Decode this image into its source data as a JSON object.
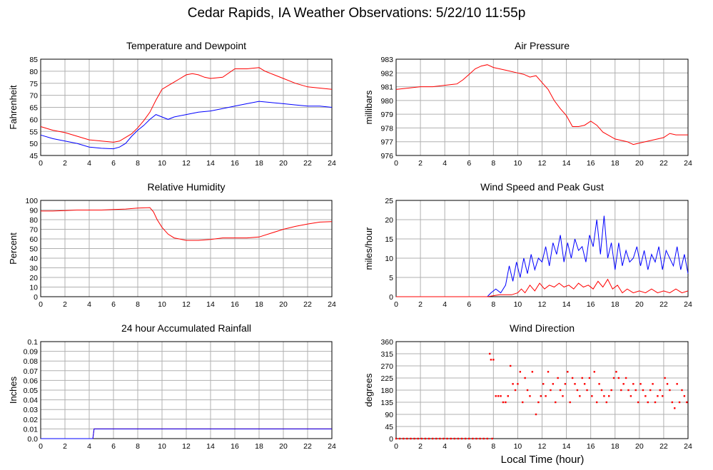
{
  "page": {
    "title": "Cedar Rapids, IA Weather Observations: 5/22/10 11:55p",
    "xlabel_bottom": "Local Time (hour)"
  },
  "chart_data": [
    {
      "type": "line",
      "title": "Temperature and Dewpoint",
      "ylabel": "Fahrenheit",
      "xlim": [
        0,
        24
      ],
      "ylim": [
        45,
        85
      ],
      "xticks": [
        0,
        2,
        4,
        6,
        8,
        10,
        12,
        14,
        16,
        18,
        20,
        22,
        24
      ],
      "yticks": [
        45,
        50,
        55,
        60,
        65,
        70,
        75,
        80,
        85
      ],
      "grid": true,
      "series": [
        {
          "color": "#ff0000",
          "x": [
            0,
            1,
            2,
            3,
            4,
            5,
            6,
            6.5,
            7,
            7.5,
            8,
            8.5,
            9,
            9.5,
            10,
            10.5,
            11,
            11.5,
            12,
            12.5,
            13,
            13.5,
            14,
            15,
            16,
            17,
            18,
            18.5,
            19,
            20,
            21,
            22,
            23,
            24
          ],
          "y": [
            57,
            55.5,
            54.5,
            53,
            51.5,
            51,
            50.5,
            51,
            52.5,
            54,
            56.5,
            59.5,
            63,
            68,
            72.5,
            74,
            75.5,
            77,
            78.5,
            79,
            78.5,
            77.5,
            77,
            77.5,
            81,
            81,
            81.5,
            80,
            79,
            77,
            75,
            73.5,
            73,
            72.5
          ]
        },
        {
          "color": "#0000ff",
          "x": [
            0,
            1,
            2,
            3,
            4,
            5,
            6,
            6.5,
            7,
            7.5,
            8,
            8.5,
            9,
            9.5,
            10,
            10.5,
            11,
            12,
            13,
            14,
            15,
            16,
            17,
            18,
            19,
            20,
            21,
            22,
            23,
            24
          ],
          "y": [
            53.5,
            52,
            51,
            50,
            48.5,
            48,
            47.8,
            48.5,
            50,
            53,
            55.5,
            57.5,
            60,
            62,
            61,
            60,
            61,
            62,
            63,
            63.5,
            64.5,
            65.5,
            66.5,
            67.5,
            67,
            66.5,
            66,
            65.5,
            65.5,
            65
          ]
        }
      ]
    },
    {
      "type": "line",
      "title": "Air Pressure",
      "ylabel": "millibars",
      "xlim": [
        0,
        24
      ],
      "ylim": [
        976,
        983
      ],
      "xticks": [
        0,
        2,
        4,
        6,
        8,
        10,
        12,
        14,
        16,
        18,
        20,
        22,
        24
      ],
      "yticks": [
        976,
        977,
        978,
        979,
        980,
        981,
        982,
        983
      ],
      "grid": true,
      "series": [
        {
          "color": "#ff0000",
          "x": [
            0,
            1,
            2,
            3,
            4,
            5,
            5.5,
            6,
            6.5,
            7,
            7.5,
            8,
            8.5,
            9,
            10,
            10.5,
            11,
            11.5,
            12,
            12.5,
            13,
            13.5,
            14,
            14.5,
            15,
            15.5,
            16,
            16.5,
            17,
            18,
            19,
            19.5,
            20,
            21,
            22,
            22.5,
            23,
            24
          ],
          "y": [
            980.8,
            980.9,
            981.0,
            981.0,
            981.1,
            981.2,
            981.5,
            981.9,
            982.3,
            982.5,
            982.6,
            982.4,
            982.3,
            982.2,
            982.0,
            981.9,
            981.7,
            981.8,
            981.3,
            980.8,
            980.0,
            979.4,
            978.9,
            978.1,
            978.1,
            978.2,
            978.5,
            978.2,
            977.7,
            977.2,
            977.0,
            976.8,
            976.9,
            977.1,
            977.3,
            977.6,
            977.5,
            977.5
          ]
        }
      ]
    },
    {
      "type": "line",
      "title": "Relative Humidity",
      "ylabel": "Percent",
      "xlim": [
        0,
        24
      ],
      "ylim": [
        0,
        100
      ],
      "xticks": [
        0,
        2,
        4,
        6,
        8,
        10,
        12,
        14,
        16,
        18,
        20,
        22,
        24
      ],
      "yticks": [
        0,
        10,
        20,
        30,
        40,
        50,
        60,
        70,
        80,
        90,
        100
      ],
      "grid": true,
      "series": [
        {
          "color": "#ff0000",
          "x": [
            0,
            1,
            2,
            3,
            4,
            5,
            6,
            7,
            8,
            9,
            9.3,
            9.6,
            10,
            10.5,
            11,
            12,
            13,
            14,
            15,
            16,
            17,
            18,
            19,
            20,
            21,
            22,
            23,
            24
          ],
          "y": [
            89,
            89,
            89.5,
            90,
            90,
            90,
            90.5,
            91,
            92,
            92.5,
            88,
            80,
            72,
            65,
            61,
            58.5,
            58.5,
            59.5,
            61,
            61,
            61,
            62,
            66,
            70,
            73,
            75.5,
            77.5,
            78
          ]
        }
      ]
    },
    {
      "type": "line",
      "title": "Wind Speed and Peak Gust",
      "ylabel": "miles/hour",
      "xlim": [
        0,
        24
      ],
      "ylim": [
        0,
        25
      ],
      "xticks": [
        0,
        2,
        4,
        6,
        8,
        10,
        12,
        14,
        16,
        18,
        20,
        22,
        24
      ],
      "yticks": [
        0,
        5,
        10,
        15,
        20,
        25
      ],
      "grid": true,
      "series": [
        {
          "color": "#0000ff",
          "x": [
            0,
            7.5,
            7.8,
            8.2,
            8.6,
            9,
            9.3,
            9.6,
            9.9,
            10.2,
            10.5,
            10.8,
            11.1,
            11.4,
            11.7,
            12,
            12.3,
            12.6,
            12.9,
            13.2,
            13.5,
            13.8,
            14.1,
            14.4,
            14.7,
            15,
            15.3,
            15.6,
            15.9,
            16.2,
            16.5,
            16.8,
            17.1,
            17.4,
            17.7,
            18,
            18.3,
            18.6,
            18.9,
            19.2,
            19.5,
            19.8,
            20.1,
            20.4,
            20.7,
            21,
            21.3,
            21.6,
            21.9,
            22.2,
            22.5,
            22.8,
            23.1,
            23.4,
            23.7,
            24
          ],
          "y": [
            0,
            0,
            1,
            2,
            1,
            3,
            8,
            4,
            9,
            5,
            10,
            6,
            11,
            7,
            10,
            9,
            13,
            8,
            14,
            11,
            16,
            9,
            14,
            10,
            15,
            12,
            13,
            9,
            16,
            13,
            20,
            11,
            21,
            10,
            14,
            7,
            14,
            8,
            12,
            9,
            10,
            13,
            8,
            12,
            7,
            11,
            9,
            13,
            7,
            12,
            10,
            8,
            13,
            7,
            11,
            6
          ]
        },
        {
          "color": "#ff0000",
          "x": [
            0,
            7.5,
            8.5,
            9,
            9.5,
            10,
            10.3,
            10.6,
            11,
            11.4,
            11.8,
            12.2,
            12.6,
            13,
            13.4,
            13.8,
            14.2,
            14.6,
            15,
            15.4,
            15.8,
            16.2,
            16.6,
            17,
            17.4,
            17.8,
            18.2,
            18.6,
            19,
            19.5,
            20,
            20.5,
            21,
            21.5,
            22,
            22.5,
            23,
            23.5,
            24
          ],
          "y": [
            0,
            0,
            0.5,
            0.5,
            0.5,
            1,
            2,
            1,
            3,
            1.5,
            3.5,
            2,
            3,
            2.5,
            3.5,
            2.5,
            3,
            2,
            3.5,
            2.5,
            3,
            2,
            4,
            2.5,
            4.5,
            2,
            3,
            1,
            2,
            1,
            1.5,
            1,
            2,
            1,
            1.5,
            1,
            2,
            1,
            1.5
          ]
        }
      ]
    },
    {
      "type": "line",
      "title": "24 hour Accumulated Rainfall",
      "ylabel": "Inches",
      "xlim": [
        0,
        24
      ],
      "ylim": [
        0,
        0.1
      ],
      "xticks": [
        0,
        2,
        4,
        6,
        8,
        10,
        12,
        14,
        16,
        18,
        20,
        22,
        24
      ],
      "yticks": [
        "0.0",
        "0.01",
        "0.02",
        "0.03",
        "0.04",
        "0.05",
        "0.06",
        "0.07",
        "0.08",
        "0.09",
        "0.1"
      ],
      "grid": true,
      "series": [
        {
          "color": "#ff0000",
          "x": [
            0,
            4.3,
            4.4,
            24
          ],
          "y": [
            0,
            0,
            0.01,
            0.01
          ]
        },
        {
          "color": "#0000ff",
          "x": [
            0,
            4.3,
            4.4,
            24
          ],
          "y": [
            0,
            0,
            0.01,
            0.01
          ]
        }
      ]
    },
    {
      "type": "scatter",
      "title": "Wind Direction",
      "ylabel": "degrees",
      "xlabel": "Local Time (hour)",
      "xlim": [
        0,
        24
      ],
      "ylim": [
        0,
        360
      ],
      "xticks": [
        0,
        2,
        4,
        6,
        8,
        10,
        12,
        14,
        16,
        18,
        20,
        22,
        24
      ],
      "yticks": [
        0,
        45,
        90,
        135,
        180,
        225,
        270,
        315,
        360
      ],
      "grid": true,
      "series": [
        {
          "color": "#ff0000",
          "x": [
            0,
            0.3,
            0.6,
            0.9,
            1.2,
            1.5,
            1.8,
            2.1,
            2.4,
            2.7,
            3,
            3.3,
            3.6,
            3.9,
            4.2,
            4.5,
            4.8,
            5.1,
            5.4,
            5.7,
            6,
            6.3,
            6.6,
            6.9,
            7.2,
            7.5,
            7.7,
            7.8,
            7.9,
            8,
            8.2,
            8.4,
            8.6,
            8.8,
            9,
            9.2,
            9.4,
            9.6,
            9.8,
            10,
            10.2,
            10.4,
            10.6,
            10.8,
            11,
            11.2,
            11.5,
            11.7,
            11.9,
            12.1,
            12.3,
            12.5,
            12.7,
            12.9,
            13.1,
            13.3,
            13.5,
            13.7,
            13.9,
            14.1,
            14.3,
            14.5,
            14.7,
            14.9,
            15.1,
            15.3,
            15.5,
            15.7,
            15.9,
            16.1,
            16.3,
            16.5,
            16.7,
            16.9,
            17.1,
            17.3,
            17.5,
            17.7,
            17.9,
            18.1,
            18.3,
            18.5,
            18.7,
            18.9,
            19.1,
            19.3,
            19.5,
            19.7,
            19.9,
            20.1,
            20.3,
            20.5,
            20.7,
            20.9,
            21.1,
            21.3,
            21.5,
            21.7,
            21.9,
            22.1,
            22.3,
            22.5,
            22.7,
            22.9,
            23.1,
            23.3,
            23.5,
            23.7,
            23.9
          ],
          "y": [
            0,
            0,
            0,
            0,
            0,
            0,
            0,
            0,
            0,
            0,
            0,
            0,
            0,
            0,
            0,
            0,
            0,
            0,
            0,
            0,
            0,
            0,
            0,
            0,
            0,
            0,
            315,
            293,
            0,
            293,
            158,
            158,
            158,
            135,
            135,
            158,
            270,
            203,
            180,
            203,
            248,
            135,
            225,
            180,
            158,
            248,
            90,
            135,
            158,
            203,
            158,
            248,
            180,
            203,
            135,
            225,
            180,
            158,
            203,
            248,
            135,
            225,
            203,
            180,
            158,
            225,
            203,
            180,
            225,
            158,
            248,
            135,
            203,
            180,
            158,
            135,
            158,
            180,
            225,
            248,
            225,
            180,
            203,
            225,
            180,
            158,
            203,
            180,
            135,
            203,
            180,
            158,
            135,
            180,
            203,
            135,
            158,
            180,
            158,
            225,
            203,
            180,
            135,
            113,
            203,
            135,
            180,
            158,
            135
          ]
        }
      ]
    }
  ]
}
